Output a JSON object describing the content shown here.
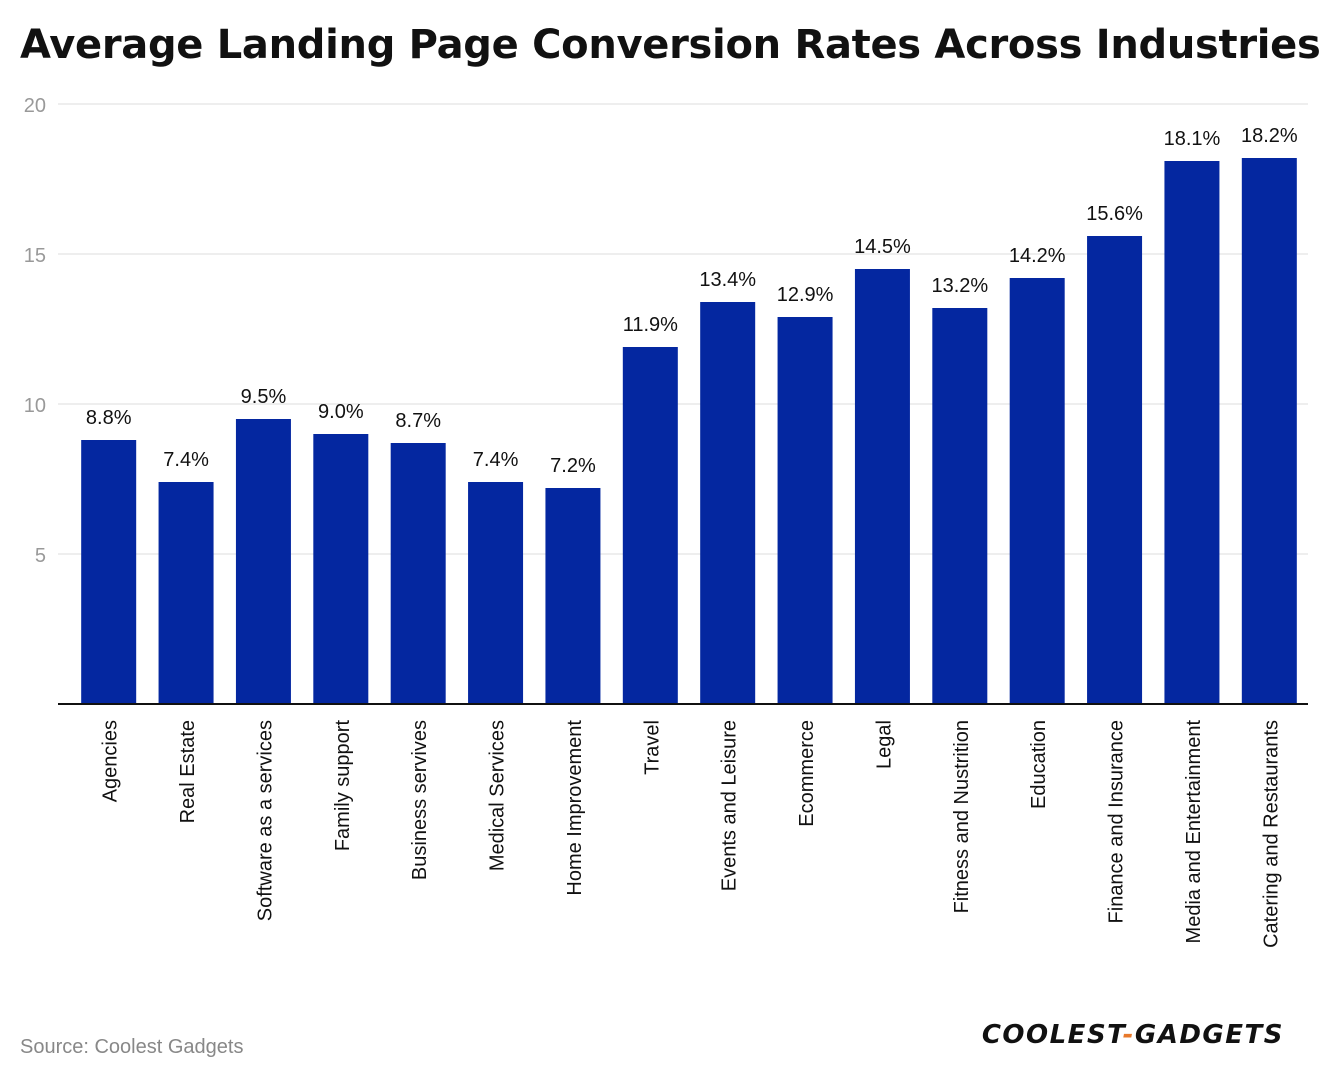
{
  "header": {
    "title": "Average Landing Page Conversion Rates Across Industries"
  },
  "footer": {
    "source": "Source: Coolest Gadgets",
    "logo_left": "COOLEST",
    "logo_sep": "-",
    "logo_right": "GADGETS"
  },
  "colors": {
    "bar": "#0427A0",
    "grid": "#dddddd",
    "axis": "#111111",
    "tick": "#999999",
    "logo_accent": "#e8792b"
  },
  "chart_data": {
    "type": "bar",
    "title": "Average Landing Page Conversion Rates Across Industries",
    "xlabel": "",
    "ylabel": "",
    "ylim": [
      0,
      20
    ],
    "yticks": [
      5,
      10,
      15,
      20
    ],
    "grid": true,
    "value_suffix": "%",
    "categories": [
      "Agencies",
      "Real Estate",
      "Software as a services",
      "Family support",
      "Business servives",
      "Medical Services",
      "Home Improvement",
      "Travel",
      "Events and Leisure",
      "Ecommerce",
      "Legal",
      "Fitness and Nustrition",
      "Education",
      "Finance and Insurance",
      "Media and Entertainment",
      "Catering and Restaurants"
    ],
    "values": [
      8.8,
      7.4,
      9.5,
      9.0,
      8.7,
      7.4,
      7.2,
      11.9,
      13.4,
      12.9,
      14.5,
      13.2,
      14.2,
      15.6,
      18.1,
      18.2
    ],
    "data_labels": [
      "8.8%",
      "7.4%",
      "9.5%",
      "9.0%",
      "8.7%",
      "7.4%",
      "7.2%",
      "11.9%",
      "13.4%",
      "12.9%",
      "14.5%",
      "13.2%",
      "14.2%",
      "15.6%",
      "18.1%",
      "18.2%"
    ]
  }
}
